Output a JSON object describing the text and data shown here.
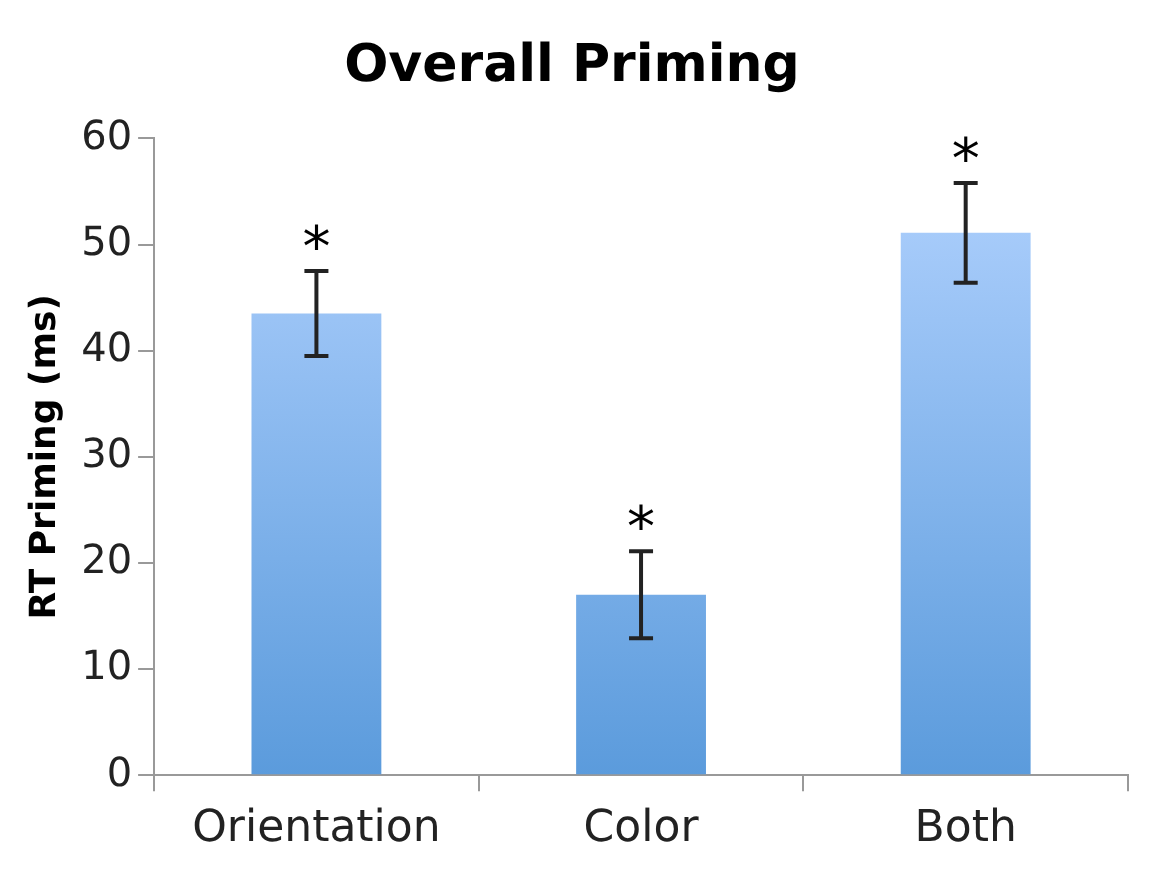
{
  "chart_data": {
    "type": "bar",
    "title": "Overall Priming",
    "ylabel": "RT Priming (ms)",
    "categories": [
      "Orientation",
      "Color",
      "Both"
    ],
    "values": [
      43.5,
      17,
      51.1
    ],
    "errors": [
      4,
      4.1,
      4.7
    ],
    "color": "#5b9bdc",
    "ylim": [
      0,
      60
    ],
    "yticks": [
      0,
      10,
      20,
      30,
      40,
      50,
      60
    ],
    "grid": false,
    "legend": false,
    "annotations": [
      "*",
      "*",
      "*"
    ]
  }
}
